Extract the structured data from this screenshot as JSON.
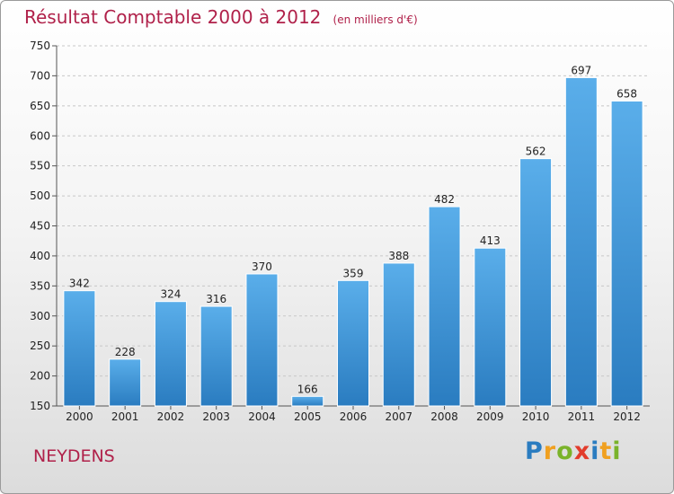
{
  "chart_data": {
    "type": "bar",
    "title": "Résultat Comptable 2000 à 2012",
    "subtitle": "(en milliers d'€)",
    "categories": [
      "2000",
      "2001",
      "2002",
      "2003",
      "2004",
      "2005",
      "2006",
      "2007",
      "2008",
      "2009",
      "2010",
      "2011",
      "2012"
    ],
    "values": [
      342,
      228,
      324,
      316,
      370,
      166,
      359,
      388,
      482,
      413,
      562,
      697,
      658
    ],
    "ylim": [
      150,
      750
    ],
    "yticks": [
      150,
      200,
      250,
      300,
      350,
      400,
      450,
      500,
      550,
      600,
      650,
      700,
      750
    ],
    "grid": true,
    "legend": "none",
    "bar_color_top": "#5aaeea",
    "bar_color_bottom": "#2a7cc0"
  },
  "location": "NEYDENS",
  "logo": {
    "letters": [
      "P",
      "r",
      "o",
      "x",
      "i",
      "t",
      "i"
    ],
    "colors": [
      "#2a7cc0",
      "#f0a020",
      "#7ab32a",
      "#e23c2c",
      "#2a7cc0",
      "#f0a020",
      "#7ab32a"
    ]
  }
}
